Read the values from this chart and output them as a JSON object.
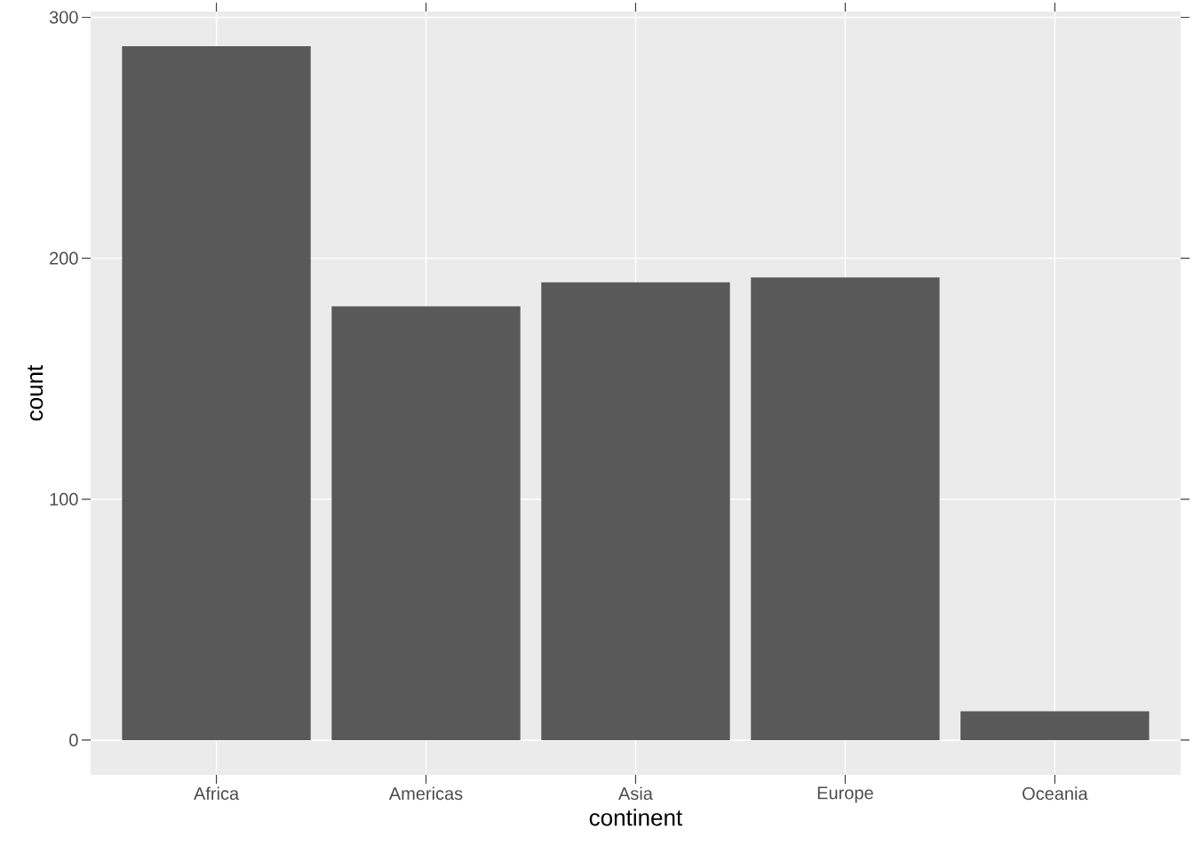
{
  "chart_data": {
    "type": "bar",
    "xlabel": "continent",
    "ylabel": "count",
    "categories": [
      "Africa",
      "Americas",
      "Asia",
      "Europe",
      "Oceania"
    ],
    "values": [
      288,
      180,
      190,
      192,
      12
    ],
    "color": "#595959",
    "ylim": [
      -14.4,
      302.4
    ],
    "yticks": [
      0,
      100,
      200,
      300
    ],
    "grid": true
  }
}
